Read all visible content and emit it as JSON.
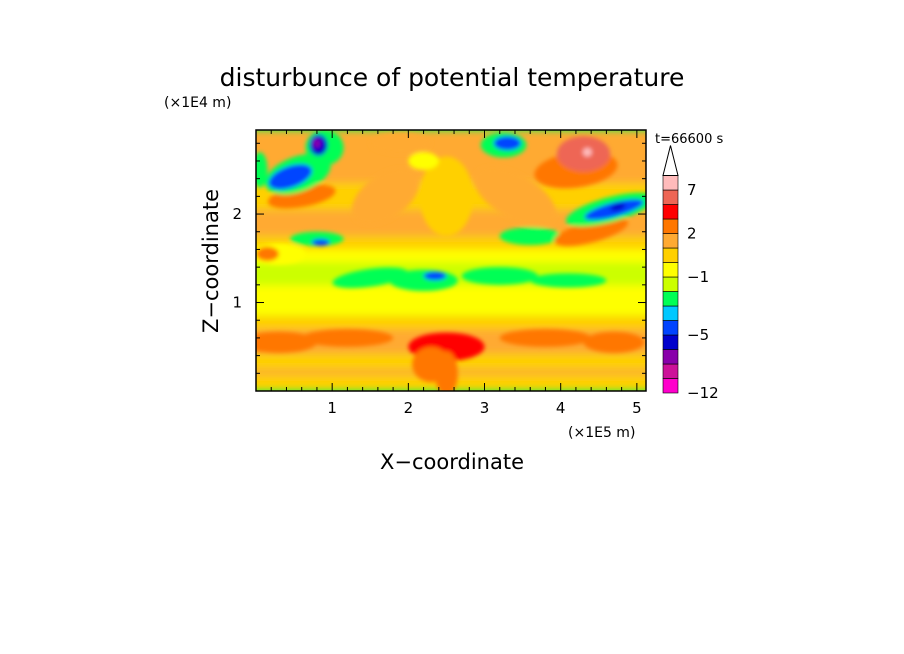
{
  "chart_data": {
    "type": "heatmap",
    "title": "disturbunce of potential temperature",
    "xlabel": "X−coordinate",
    "ylabel": "Z−coordinate",
    "x_scale_label": "(×1E5 m)",
    "y_scale_label": "(×1E4 m)",
    "time_label": "t=66600 s",
    "xlim": [
      0,
      5.12
    ],
    "ylim": [
      0,
      2.95
    ],
    "x_ticks": [
      1,
      2,
      3,
      4,
      5
    ],
    "x_tick_labels": [
      "1",
      "2",
      "3",
      "4",
      "5"
    ],
    "y_ticks": [
      1,
      2
    ],
    "y_tick_labels": [
      "1",
      "2"
    ],
    "colorbar": {
      "levels_bottom_to_top": [
        "-12",
        "-10",
        "-8",
        "-6",
        "-5",
        "-4",
        "-3",
        "-2",
        "-1",
        "0",
        "1",
        "2",
        "3",
        "5",
        "7",
        "9",
        "11"
      ],
      "colors_bottom_to_top": [
        "#ff00cc",
        "#cc1199",
        "#8800aa",
        "#0000cc",
        "#0044ff",
        "#00c8ff",
        "#00ff55",
        "#ccff00",
        "#ffff00",
        "#ffd000",
        "#ffaa33",
        "#ff7700",
        "#ff0000",
        "#ee6655",
        "#ffbbbb"
      ],
      "tick_labels": [
        "−12",
        "−5",
        "−1",
        "2",
        "7"
      ],
      "tick_levels": [
        -12,
        -5,
        -1,
        2,
        7
      ],
      "extend_top": true
    },
    "features": [
      {
        "x": 0.8,
        "z": 2.75,
        "value": -10
      },
      {
        "x": 0.45,
        "z": 2.4,
        "value": -5
      },
      {
        "x": 3.3,
        "z": 2.8,
        "value": -5
      },
      {
        "x": 4.6,
        "z": 2.05,
        "value": -5
      },
      {
        "x": 4.3,
        "z": 2.65,
        "value": 7
      },
      {
        "x": 2.3,
        "z": 1.3,
        "value": -5
      },
      {
        "x": 2.5,
        "z": 0.55,
        "value": 3
      }
    ]
  }
}
